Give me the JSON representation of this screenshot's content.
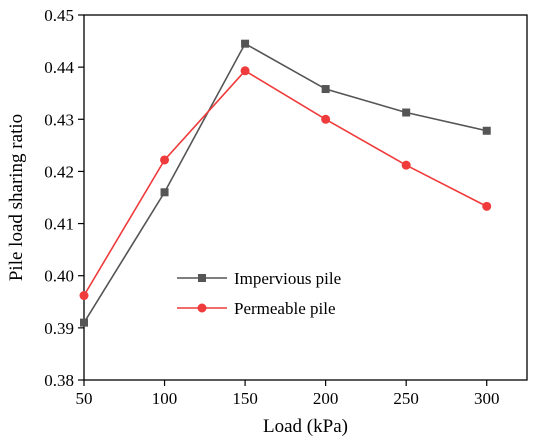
{
  "chart_data": {
    "type": "line",
    "title": "",
    "xlabel": "Load (kPa)",
    "ylabel": "Pile load sharing ratio",
    "x": [
      50,
      100,
      150,
      200,
      250,
      300
    ],
    "xlim": [
      50,
      325
    ],
    "ylim": [
      0.38,
      0.45
    ],
    "xticks": [
      50,
      100,
      150,
      200,
      250,
      300
    ],
    "yticks": [
      0.38,
      0.39,
      0.4,
      0.41,
      0.42,
      0.43,
      0.44,
      0.45
    ],
    "ytick_labels": [
      "0.38",
      "0.39",
      "0.40",
      "0.41",
      "0.42",
      "0.43",
      "0.44",
      "0.45"
    ],
    "grid": false,
    "legend_position": "center-left",
    "series": [
      {
        "name": "Impervious pile",
        "marker": "square",
        "color": "#555555",
        "values": [
          0.391,
          0.416,
          0.4445,
          0.4358,
          0.4313,
          0.4278
        ]
      },
      {
        "name": "Permeable pile",
        "marker": "circle",
        "color": "#ef3b3b",
        "values": [
          0.3962,
          0.4222,
          0.4393,
          0.43,
          0.4212,
          0.4133
        ]
      }
    ]
  }
}
